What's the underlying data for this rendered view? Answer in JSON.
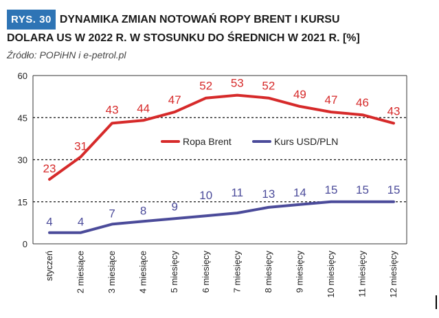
{
  "header": {
    "badge": "RYS. 30",
    "title_line1": "DYNAMIKA ZMIAN NOTOWAŃ ROPY BRENT I KURSU",
    "title_line2": "DOLARA US W 2022 R. W STOSUNKU DO ŚREDNICH W 2021 R. [%]",
    "source": "Źródło: POPiHN i e-petrol.pl"
  },
  "chart_data": {
    "type": "line",
    "title": "DYNAMIKA ZMIAN NOTOWAŃ ROPY BRENT I KURSU DOLARA US W 2022 R. W STOSUNKU DO ŚREDNICH W 2021 R. [%]",
    "categories": [
      "styczeń",
      "2 miesiące",
      "3 miesiące",
      "4 miesiące",
      "5 miesięcy",
      "6 miesięcy",
      "7 miesięcy",
      "8 miesięcy",
      "9 miesięcy",
      "10 miesięcy",
      "11 miesięcy",
      "12 miesięcy"
    ],
    "series": [
      {
        "name": "Ropa Brent",
        "color": "#d62a2a",
        "values": [
          23,
          31,
          43,
          44,
          47,
          52,
          53,
          52,
          49,
          47,
          46,
          43
        ],
        "labels": [
          "23",
          "31",
          "43",
          "44",
          "47",
          "52",
          "53",
          "52",
          "49",
          "47",
          "46",
          "43"
        ]
      },
      {
        "name": "Kurs USD/PLN",
        "color": "#4b4b9a",
        "values": [
          4,
          4,
          7,
          8,
          9,
          10,
          11,
          13,
          14,
          15,
          15,
          15
        ],
        "labels": [
          "4",
          "4",
          "7",
          "8",
          "9",
          "10",
          "11",
          "13",
          "14",
          "15",
          "15",
          "15"
        ]
      }
    ],
    "ylim": [
      0,
      60
    ],
    "yticks": [
      0,
      15,
      30,
      45,
      60
    ],
    "ytick_labels": [
      "0",
      "15",
      "30",
      "45",
      "60"
    ],
    "gridlines": "dashed at 15, 30, 45",
    "legend": "inside, center-right"
  }
}
